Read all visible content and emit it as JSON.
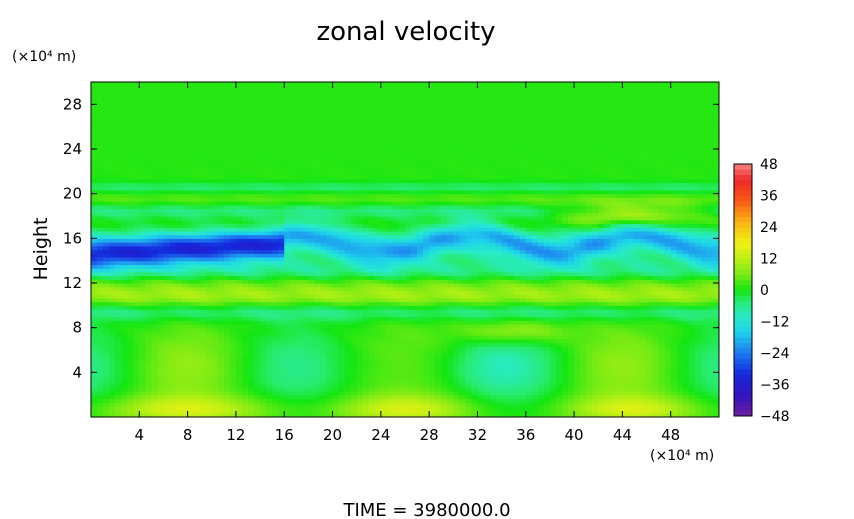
{
  "chart_data": {
    "type": "heatmap",
    "title": "zonal velocity",
    "ylabel": "Height",
    "y_unit": "(×10⁴ m)",
    "x_unit": "(×10⁴ m)",
    "footer": "TIME = 3980000.0",
    "xlim": [
      0,
      52
    ],
    "ylim": [
      0,
      30
    ],
    "x_ticks": [
      4,
      8,
      12,
      16,
      20,
      24,
      28,
      32,
      36,
      40,
      44,
      48
    ],
    "y_ticks": [
      4,
      8,
      12,
      16,
      20,
      24,
      28
    ],
    "colorbar": {
      "range": [
        -48,
        48
      ],
      "tick_labels": [
        "48",
        "36",
        "24",
        "12",
        "0",
        "−12",
        "−24",
        "−36",
        "−48"
      ],
      "tick_values": [
        48,
        36,
        24,
        12,
        0,
        -12,
        -24,
        -36,
        -48
      ]
    },
    "features": [
      {
        "desc": "negative jet",
        "x_range": [
          0,
          16
        ],
        "y": 14.8,
        "value": -30
      },
      {
        "desc": "negative band",
        "x_range": [
          16,
          52
        ],
        "y": 15.5,
        "value": -14
      },
      {
        "desc": "positive band",
        "x_range": [
          40,
          52
        ],
        "y": 18,
        "value": 14
      },
      {
        "desc": "surface positive patches",
        "x_centers": [
          8,
          26,
          45
        ],
        "y": 1,
        "value": 16
      },
      {
        "desc": "lower negative cells",
        "x_centers": [
          16,
          32,
          50
        ],
        "y": 4.5,
        "value": -8
      },
      {
        "desc": "upper layer",
        "y_range": [
          21,
          30
        ],
        "value": 1
      }
    ]
  }
}
